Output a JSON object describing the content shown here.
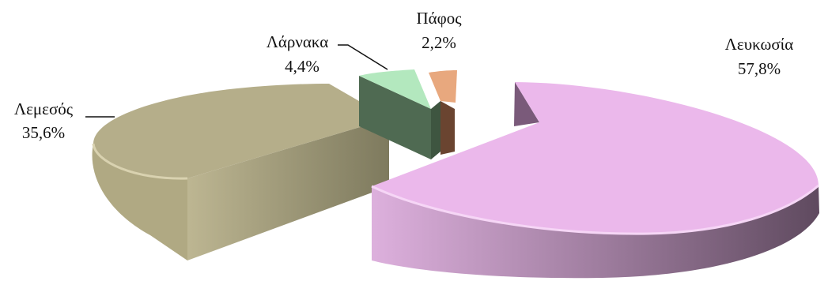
{
  "chart_data": {
    "type": "pie",
    "style": "3d-exploded",
    "labels": [
      "Λευκωσία",
      "Λεμεσός",
      "Λάρνακα",
      "Πάφος"
    ],
    "values": [
      57.8,
      35.6,
      4.4,
      2.2
    ],
    "value_labels": [
      "57,8%",
      "35,6%",
      "4,4%",
      "2,2%"
    ],
    "colors": [
      "#EBB8EB",
      "#B5AE8A",
      "#B3E8BE",
      "#E8A87E"
    ],
    "title": "",
    "legend": "none"
  }
}
